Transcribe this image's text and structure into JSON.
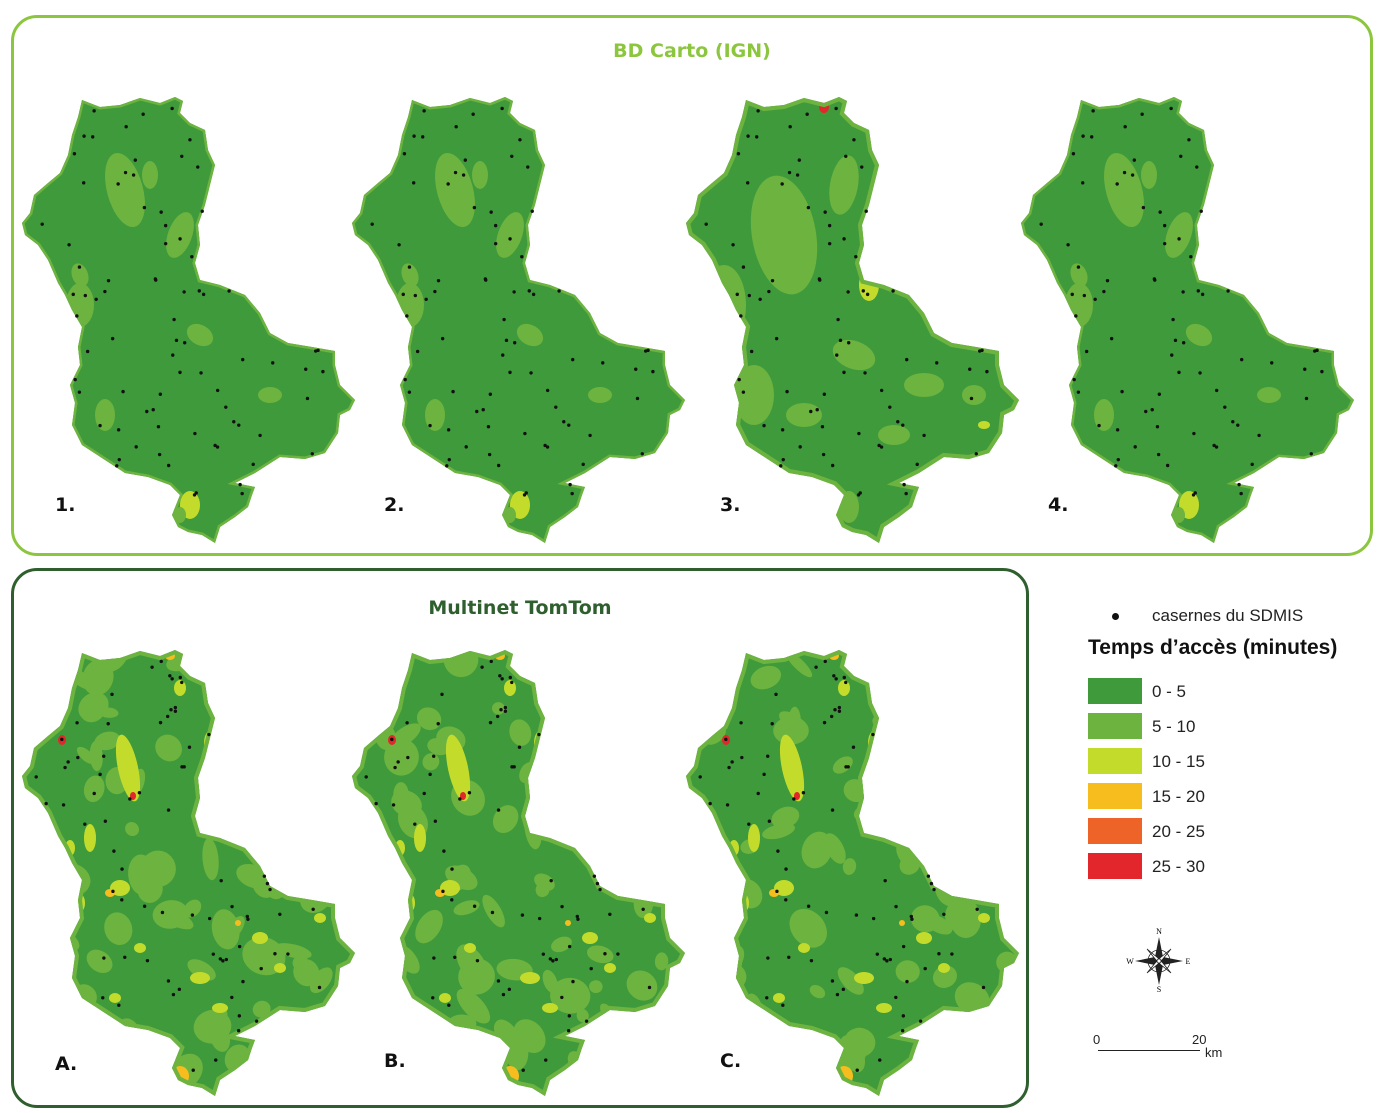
{
  "panels": {
    "ign": {
      "title": "BD Carto (IGN)",
      "border_color": "#8cc63f"
    },
    "tomtom": {
      "title": "Multinet TomTom",
      "border_color": "#2f5f2f"
    }
  },
  "maps": [
    {
      "id": "1",
      "label": "1.",
      "panel": "ign",
      "scenario": "ign-low"
    },
    {
      "id": "2",
      "label": "2.",
      "panel": "ign",
      "scenario": "ign-low"
    },
    {
      "id": "3",
      "label": "3.",
      "panel": "ign",
      "scenario": "ign-mid"
    },
    {
      "id": "4",
      "label": "4.",
      "panel": "ign",
      "scenario": "ign-low"
    },
    {
      "id": "A",
      "label": "A.",
      "panel": "tomtom",
      "scenario": "tomtom"
    },
    {
      "id": "B",
      "label": "B.",
      "panel": "tomtom",
      "scenario": "tomtom"
    },
    {
      "id": "C",
      "label": "C.",
      "panel": "tomtom",
      "scenario": "tomtom"
    }
  ],
  "legend": {
    "marker_label": "casernes du SDMIS",
    "title": "Temps d’accès (minutes)",
    "classes": [
      {
        "label": "0 - 5",
        "color": "#3f9a3c"
      },
      {
        "label": "5 - 10",
        "color": "#6db33f"
      },
      {
        "label": "10 - 15",
        "color": "#c3dc2c"
      },
      {
        "label": "15 - 20",
        "color": "#f7bd1f"
      },
      {
        "label": "20 - 25",
        "color": "#ee6428"
      },
      {
        "label": "25 - 30",
        "color": "#e2262c"
      }
    ]
  },
  "compass": {
    "n": "N",
    "s": "S",
    "e": "E",
    "w": "W"
  },
  "scale": {
    "start": "0",
    "end": "20",
    "unit": "km"
  }
}
